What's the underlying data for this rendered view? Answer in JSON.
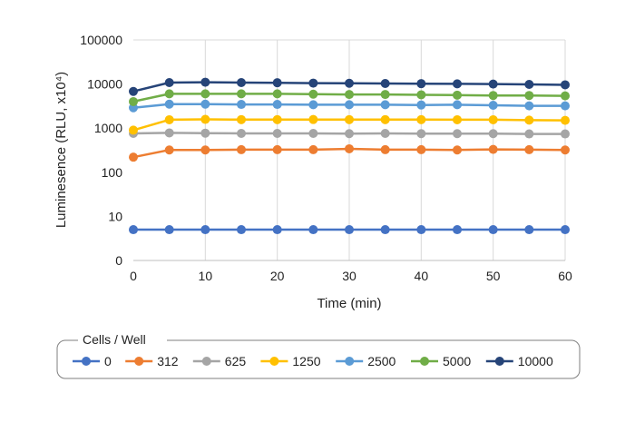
{
  "chart_data": {
    "type": "line",
    "title": "",
    "xlabel": "Time (min)",
    "ylabel": "Luminesence (RLU, x10⁴)",
    "xlim": [
      0,
      60
    ],
    "x_ticks": [
      "0",
      "10",
      "20",
      "30",
      "40",
      "50",
      "60"
    ],
    "y_scale": "log",
    "y_ticks": [
      "0",
      "10",
      "100",
      "1000",
      "10000",
      "100000"
    ],
    "grid": "vertical",
    "legend_title": "Cells / Well",
    "legend_position": "bottom",
    "x": [
      0,
      5,
      10,
      15,
      20,
      25,
      30,
      35,
      40,
      45,
      50,
      55,
      60
    ],
    "series": [
      {
        "name": "0",
        "color": "#4472C4",
        "values": [
          5,
          5,
          5,
          5,
          5,
          5,
          5,
          5,
          5,
          5,
          5,
          5,
          5
        ]
      },
      {
        "name": "312",
        "color": "#ED7D31",
        "values": [
          220,
          320,
          320,
          325,
          325,
          325,
          340,
          325,
          325,
          320,
          330,
          325,
          320
        ]
      },
      {
        "name": "625",
        "color": "#A5A5A5",
        "values": [
          760,
          780,
          770,
          760,
          760,
          760,
          750,
          760,
          750,
          750,
          750,
          740,
          740
        ]
      },
      {
        "name": "1250",
        "color": "#FFC000",
        "values": [
          900,
          1550,
          1580,
          1560,
          1560,
          1570,
          1560,
          1560,
          1560,
          1550,
          1550,
          1520,
          1500
        ]
      },
      {
        "name": "2500",
        "color": "#5B9BD5",
        "values": [
          2900,
          3500,
          3500,
          3450,
          3450,
          3400,
          3400,
          3400,
          3350,
          3400,
          3300,
          3200,
          3200
        ]
      },
      {
        "name": "5000",
        "color": "#70AD47",
        "values": [
          4000,
          6000,
          6000,
          6000,
          6000,
          5900,
          5800,
          5800,
          5700,
          5600,
          5500,
          5500,
          5400
        ]
      },
      {
        "name": "10000",
        "color": "#264478",
        "values": [
          6800,
          10800,
          11000,
          10800,
          10700,
          10500,
          10400,
          10300,
          10200,
          10100,
          10000,
          9800,
          9600
        ]
      }
    ]
  }
}
